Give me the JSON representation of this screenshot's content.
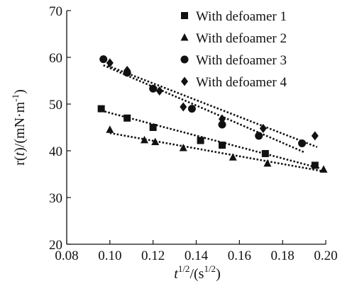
{
  "chart_data": {
    "type": "scatter",
    "title": "",
    "xlabel": {
      "base": "t",
      "sup": "1/2",
      "mid": "/(s",
      "sup2": "1/2",
      "end": ")"
    },
    "ylabel": {
      "a": "r(",
      "b": "t",
      "c": ")/(mN·m",
      "sup": "-1",
      "d": ")"
    },
    "xlim": [
      0.08,
      0.2
    ],
    "ylim": [
      20,
      70
    ],
    "xticks": [
      "0.08",
      "0.10",
      "0.12",
      "0.14",
      "0.16",
      "0.18",
      "0.20"
    ],
    "yticks": [
      "20",
      "30",
      "40",
      "50",
      "60",
      "70"
    ],
    "grid": false,
    "legend_position": "top-right",
    "series": [
      {
        "name": "With defoamer 1",
        "marker": "square",
        "x": [
          0.096,
          0.108,
          0.12,
          0.142,
          0.152,
          0.172,
          0.195
        ],
        "y": [
          49.0,
          47.0,
          45.0,
          42.2,
          41.2,
          39.4,
          36.9
        ],
        "fit": [
          [
            0.096,
            48.6
          ],
          [
            0.197,
            36.3
          ]
        ]
      },
      {
        "name": "With defoamer 2",
        "marker": "triangle",
        "x": [
          0.1,
          0.116,
          0.121,
          0.134,
          0.157,
          0.173,
          0.199
        ],
        "y": [
          44.5,
          42.3,
          41.9,
          40.6,
          38.6,
          37.3,
          36.0
        ],
        "fit": [
          [
            0.1,
            43.8
          ],
          [
            0.199,
            35.6
          ]
        ]
      },
      {
        "name": "With defoamer 3",
        "marker": "circle",
        "x": [
          0.097,
          0.108,
          0.12,
          0.138,
          0.152,
          0.169,
          0.189
        ],
        "y": [
          59.6,
          56.7,
          53.3,
          49.0,
          45.6,
          43.2,
          41.6
        ],
        "fit": [
          [
            0.097,
            58.3
          ],
          [
            0.19,
            39.7
          ]
        ]
      },
      {
        "name": "With defoamer 4",
        "marker": "diamond",
        "x": [
          0.1,
          0.108,
          0.123,
          0.134,
          0.152,
          0.171,
          0.195
        ],
        "y": [
          58.8,
          57.2,
          52.8,
          49.4,
          46.8,
          44.8,
          43.2
        ],
        "fit": [
          [
            0.099,
            58.2
          ],
          [
            0.196,
            40.8
          ]
        ]
      }
    ]
  }
}
